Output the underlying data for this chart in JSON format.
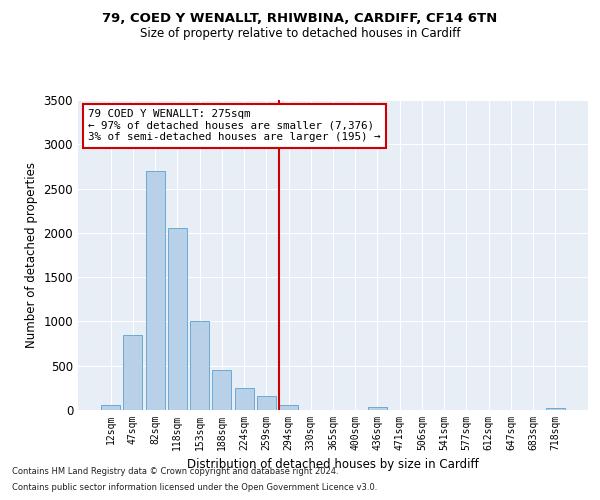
{
  "title_line1": "79, COED Y WENALLT, RHIWBINA, CARDIFF, CF14 6TN",
  "title_line2": "Size of property relative to detached houses in Cardiff",
  "xlabel": "Distribution of detached houses by size in Cardiff",
  "ylabel": "Number of detached properties",
  "categories": [
    "12sqm",
    "47sqm",
    "82sqm",
    "118sqm",
    "153sqm",
    "188sqm",
    "224sqm",
    "259sqm",
    "294sqm",
    "330sqm",
    "365sqm",
    "400sqm",
    "436sqm",
    "471sqm",
    "506sqm",
    "541sqm",
    "577sqm",
    "612sqm",
    "647sqm",
    "683sqm",
    "718sqm"
  ],
  "values": [
    55,
    850,
    2700,
    2060,
    1010,
    450,
    250,
    160,
    60,
    5,
    0,
    0,
    35,
    0,
    0,
    0,
    0,
    0,
    0,
    0,
    20
  ],
  "bar_color": "#b8d0e8",
  "bar_edge_color": "#6aaad4",
  "vline_x": 8.0,
  "vline_color": "#cc0000",
  "annotation_text": "79 COED Y WENALLT: 275sqm\n← 97% of detached houses are smaller (7,376)\n3% of semi-detached houses are larger (195) →",
  "annotation_box_color": "#ffffff",
  "annotation_box_edge": "#cc0000",
  "ylim": [
    0,
    3500
  ],
  "yticks": [
    0,
    500,
    1000,
    1500,
    2000,
    2500,
    3000,
    3500
  ],
  "background_color": "#e8eef6",
  "grid_color": "#ffffff",
  "footer_line1": "Contains HM Land Registry data © Crown copyright and database right 2024.",
  "footer_line2": "Contains public sector information licensed under the Open Government Licence v3.0."
}
